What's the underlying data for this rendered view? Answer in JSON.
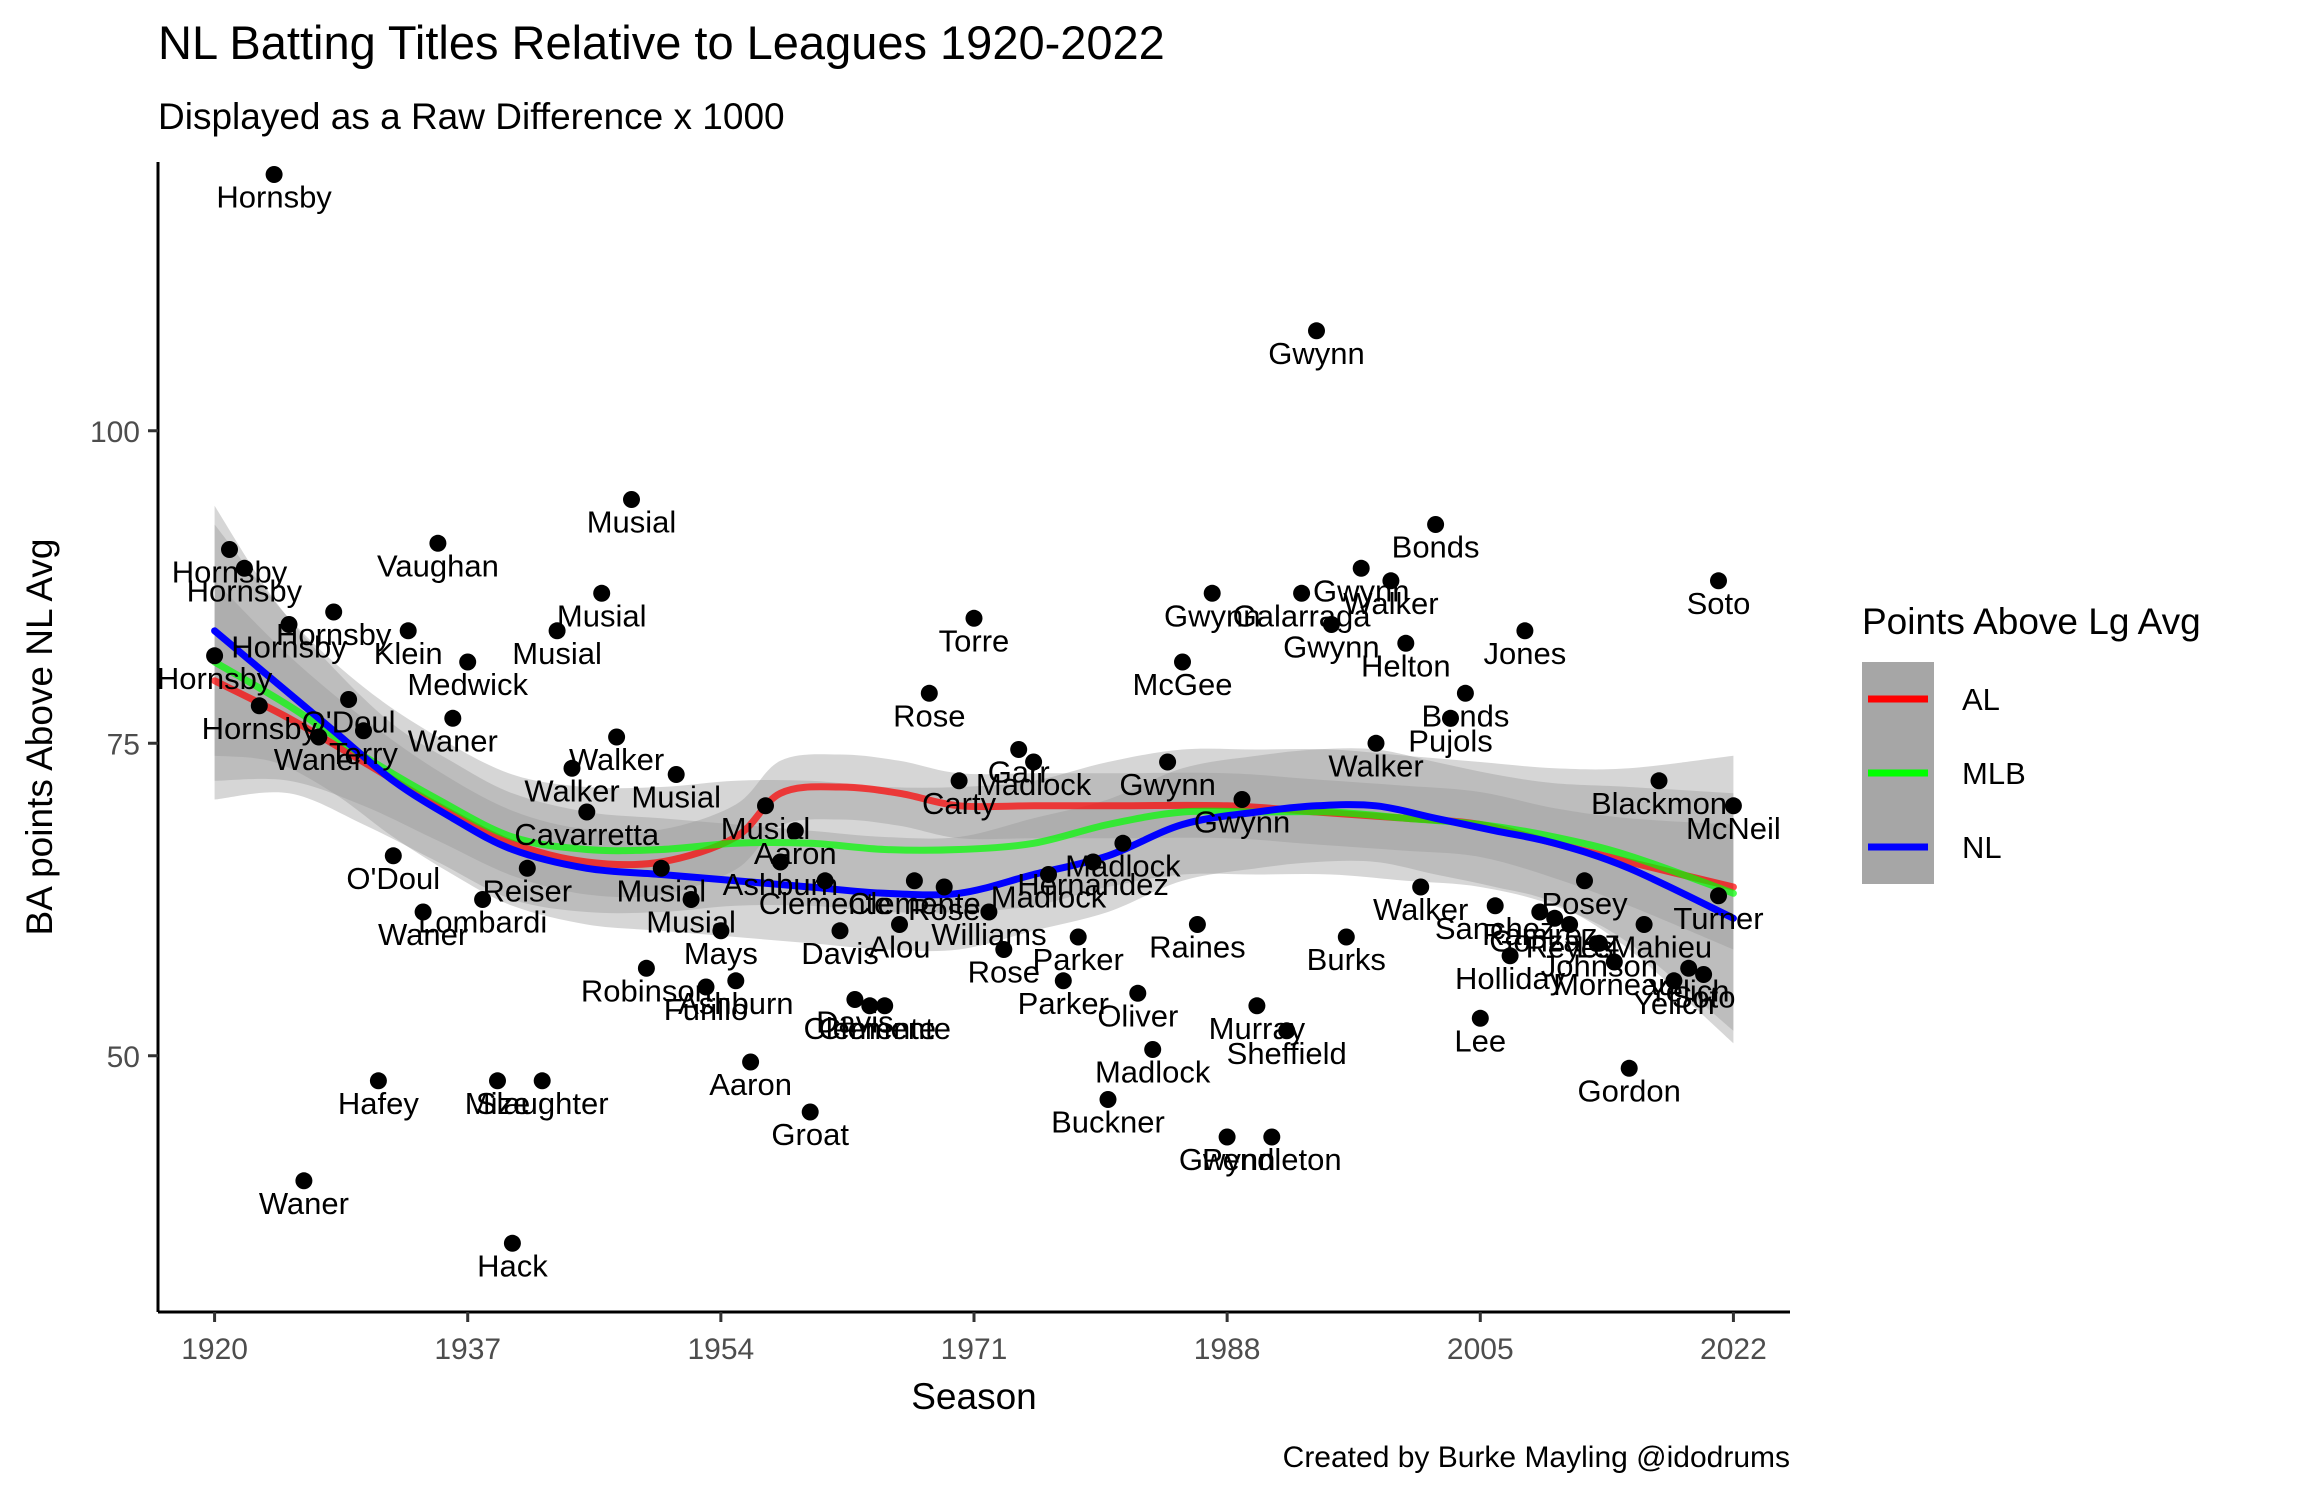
{
  "chart_data": {
    "type": "scatter",
    "title": "NL Batting Titles Relative to Leagues 1920-2022",
    "subtitle": "Displayed as a Raw Difference x 1000",
    "caption": "Created by Burke Mayling @idodrums",
    "xlabel": "Season",
    "ylabel": "BA points Above NL Avg",
    "xlim": [
      1916.2,
      2025.8
    ],
    "ylim": [
      29.5,
      121.5
    ],
    "xticks": [
      1920,
      1937,
      1954,
      1971,
      1988,
      2005,
      2022
    ],
    "yticks": [
      50,
      75,
      100
    ],
    "grid": false,
    "legend": {
      "title": "Points Above Lg Avg",
      "position": "right",
      "entries": [
        {
          "label": "AL",
          "color": "#ff0000"
        },
        {
          "label": "MLB",
          "color": "#00ff00"
        },
        {
          "label": "NL",
          "color": "#0000ff"
        }
      ]
    },
    "points": [
      {
        "x": 1920,
        "y": 82,
        "label": "Hornsby"
      },
      {
        "x": 1921,
        "y": 90.5,
        "label": "Hornsby"
      },
      {
        "x": 1922,
        "y": 89,
        "label": "Hornsby"
      },
      {
        "x": 1923,
        "y": 78,
        "label": "Hornsby"
      },
      {
        "x": 1924,
        "y": 120.5,
        "label": "Hornsby"
      },
      {
        "x": 1925,
        "y": 84.5,
        "label": "Hornsby"
      },
      {
        "x": 1926,
        "y": 40,
        "label": "Waner"
      },
      {
        "x": 1927,
        "y": 75.5,
        "label": "Waner"
      },
      {
        "x": 1928,
        "y": 85.5,
        "label": "Hornsby"
      },
      {
        "x": 1929,
        "y": 78.5,
        "label": "O'Doul"
      },
      {
        "x": 1930,
        "y": 76,
        "label": "Terry"
      },
      {
        "x": 1931,
        "y": 48,
        "label": "Hafey"
      },
      {
        "x": 1932,
        "y": 66,
        "label": "O'Doul"
      },
      {
        "x": 1933,
        "y": 84,
        "label": "Klein"
      },
      {
        "x": 1934,
        "y": 61.5,
        "label": "Waner"
      },
      {
        "x": 1935,
        "y": 91,
        "label": "Vaughan"
      },
      {
        "x": 1936,
        "y": 77,
        "label": "Waner"
      },
      {
        "x": 1937,
        "y": 81.5,
        "label": "Medwick"
      },
      {
        "x": 1938,
        "y": 62.5,
        "label": "Lombardi"
      },
      {
        "x": 1939,
        "y": 48,
        "label": "Mize"
      },
      {
        "x": 1940,
        "y": 35,
        "label": "Hack"
      },
      {
        "x": 1941,
        "y": 65,
        "label": "Reiser"
      },
      {
        "x": 1942,
        "y": 48,
        "label": "Slaughter"
      },
      {
        "x": 1943,
        "y": 84,
        "label": "Musial"
      },
      {
        "x": 1944,
        "y": 73,
        "label": "Walker"
      },
      {
        "x": 1945,
        "y": 69.5,
        "label": "Cavarretta"
      },
      {
        "x": 1946,
        "y": 87,
        "label": "Musial"
      },
      {
        "x": 1947,
        "y": 75.5,
        "label": "Walker"
      },
      {
        "x": 1948,
        "y": 94.5,
        "label": "Musial"
      },
      {
        "x": 1949,
        "y": 57,
        "label": "Robinson"
      },
      {
        "x": 1950,
        "y": 65,
        "label": "Musial"
      },
      {
        "x": 1951,
        "y": 72.5,
        "label": "Musial"
      },
      {
        "x": 1952,
        "y": 62.5,
        "label": "Musial"
      },
      {
        "x": 1953,
        "y": 55.5,
        "label": "Furillo"
      },
      {
        "x": 1954,
        "y": 60,
        "label": "Mays"
      },
      {
        "x": 1955,
        "y": 56,
        "label": "Ashburn"
      },
      {
        "x": 1956,
        "y": 49.5,
        "label": "Aaron"
      },
      {
        "x": 1957,
        "y": 70,
        "label": "Musial"
      },
      {
        "x": 1958,
        "y": 65.5,
        "label": "Ashburn"
      },
      {
        "x": 1959,
        "y": 68,
        "label": "Aaron"
      },
      {
        "x": 1960,
        "y": 45.5,
        "label": "Groat"
      },
      {
        "x": 1961,
        "y": 64,
        "label": "Clemente"
      },
      {
        "x": 1962,
        "y": 60,
        "label": "Davis"
      },
      {
        "x": 1963,
        "y": 54.5,
        "label": "Davis"
      },
      {
        "x": 1964,
        "y": 54,
        "label": "Clemente"
      },
      {
        "x": 1965,
        "y": 54,
        "label": "Clemente"
      },
      {
        "x": 1966,
        "y": 60.5,
        "label": "Alou"
      },
      {
        "x": 1967,
        "y": 64,
        "label": "Clemente"
      },
      {
        "x": 1968,
        "y": 79,
        "label": "Rose"
      },
      {
        "x": 1969,
        "y": 63.5,
        "label": "Rose"
      },
      {
        "x": 1970,
        "y": 72,
        "label": "Carty"
      },
      {
        "x": 1971,
        "y": 85,
        "label": "Torre"
      },
      {
        "x": 1972,
        "y": 61.5,
        "label": "Williams"
      },
      {
        "x": 1973,
        "y": 58.5,
        "label": "Rose"
      },
      {
        "x": 1974,
        "y": 74.5,
        "label": "Garr"
      },
      {
        "x": 1975,
        "y": 73.5,
        "label": "Madlock"
      },
      {
        "x": 1976,
        "y": 64.5,
        "label": "Madlock"
      },
      {
        "x": 1977,
        "y": 56,
        "label": "Parker"
      },
      {
        "x": 1978,
        "y": 59.5,
        "label": "Parker"
      },
      {
        "x": 1979,
        "y": 65.5,
        "label": "Hernandez"
      },
      {
        "x": 1980,
        "y": 46.5,
        "label": "Buckner"
      },
      {
        "x": 1981,
        "y": 67,
        "label": "Madlock"
      },
      {
        "x": 1982,
        "y": 55,
        "label": "Oliver"
      },
      {
        "x": 1983,
        "y": 50.5,
        "label": "Madlock"
      },
      {
        "x": 1984,
        "y": 73.5,
        "label": "Gwynn"
      },
      {
        "x": 1985,
        "y": 81.5,
        "label": "McGee"
      },
      {
        "x": 1986,
        "y": 60.5,
        "label": "Raines"
      },
      {
        "x": 1987,
        "y": 87,
        "label": "Gwynn"
      },
      {
        "x": 1988,
        "y": 43.5,
        "label": "Gwynn"
      },
      {
        "x": 1989,
        "y": 70.5,
        "label": "Gwynn"
      },
      {
        "x": 1990,
        "y": 54,
        "label": "Murray"
      },
      {
        "x": 1991,
        "y": 43.5,
        "label": "Pendleton"
      },
      {
        "x": 1992,
        "y": 52,
        "label": "Sheffield"
      },
      {
        "x": 1993,
        "y": 87,
        "label": "Galarraga"
      },
      {
        "x": 1994,
        "y": 108,
        "label": "Gwynn"
      },
      {
        "x": 1995,
        "y": 84.5,
        "label": "Gwynn"
      },
      {
        "x": 1996,
        "y": 59.5,
        "label": "Burks"
      },
      {
        "x": 1997,
        "y": 89,
        "label": "Gwynn"
      },
      {
        "x": 1998,
        "y": 75,
        "label": "Walker"
      },
      {
        "x": 1999,
        "y": 88,
        "label": "Walker"
      },
      {
        "x": 2000,
        "y": 83,
        "label": "Helton"
      },
      {
        "x": 2001,
        "y": 63.5,
        "label": "Walker"
      },
      {
        "x": 2002,
        "y": 92.5,
        "label": "Bonds"
      },
      {
        "x": 2003,
        "y": 77,
        "label": "Pujols"
      },
      {
        "x": 2004,
        "y": 79,
        "label": "Bonds"
      },
      {
        "x": 2005,
        "y": 53,
        "label": "Lee"
      },
      {
        "x": 2006,
        "y": 62,
        "label": "Sanchez"
      },
      {
        "x": 2007,
        "y": 58,
        "label": "Holliday"
      },
      {
        "x": 2008,
        "y": 84,
        "label": "Jones"
      },
      {
        "x": 2009,
        "y": 61.5,
        "label": "Ramirez"
      },
      {
        "x": 2010,
        "y": 61,
        "label": "Gonzalez"
      },
      {
        "x": 2011,
        "y": 60.5,
        "label": "Reyes"
      },
      {
        "x": 2012,
        "y": 64,
        "label": "Posey"
      },
      {
        "x": 2013,
        "y": 59,
        "label": "Johnson"
      },
      {
        "x": 2014,
        "y": 57.5,
        "label": "Morneau"
      },
      {
        "x": 2015,
        "y": 49,
        "label": "Gordon"
      },
      {
        "x": 2016,
        "y": 60.5,
        "label": "LeMahieu"
      },
      {
        "x": 2017,
        "y": 72,
        "label": "Blackmon"
      },
      {
        "x": 2018,
        "y": 56,
        "label": "Yelich"
      },
      {
        "x": 2019,
        "y": 57,
        "label": "Yelich"
      },
      {
        "x": 2020,
        "y": 56.5,
        "label": "Soto"
      },
      {
        "x": 2021,
        "y": 88,
        "label": "Soto"
      },
      {
        "x": 2021,
        "y": 62.8,
        "label": "Turner"
      },
      {
        "x": 2022,
        "y": 70,
        "label": "McNeil"
      }
    ],
    "series": [
      {
        "name": "AL",
        "color": "#ff0000",
        "x": [
          1920,
          1925,
          1930,
          1935,
          1940,
          1945,
          1950,
          1955,
          1958,
          1962,
          1966,
          1970,
          1975,
          1980,
          1988,
          1994,
          2000,
          2005,
          2010,
          2015,
          2022
        ],
        "y": [
          80,
          77,
          73.5,
          70,
          67,
          65.5,
          65.5,
          67.5,
          71,
          71.5,
          71,
          70,
          70,
          70,
          70,
          69.5,
          69,
          68.5,
          67,
          65.5,
          63.5
        ],
        "ci": [
          8,
          5,
          3.5,
          2.8,
          2.6,
          2.6,
          2.6,
          2.6,
          2.6,
          2.6,
          2.6,
          2.6,
          2.6,
          2.6,
          2.6,
          2.6,
          2.6,
          2.6,
          2.8,
          3.5,
          5
        ]
      },
      {
        "name": "MLB",
        "color": "#00ff00",
        "x": [
          1920,
          1925,
          1930,
          1935,
          1940,
          1945,
          1950,
          1955,
          1960,
          1965,
          1970,
          1975,
          1980,
          1985,
          1990,
          1995,
          2000,
          2005,
          2010,
          2015,
          2022
        ],
        "y": [
          81.5,
          78,
          74,
          70.5,
          67.5,
          66.5,
          66.5,
          67,
          67,
          66.5,
          66.5,
          67,
          68.5,
          69.5,
          69.5,
          69.5,
          69,
          68.5,
          67.5,
          66,
          63
        ],
        "ci": [
          11,
          7,
          5.5,
          5,
          5,
          5,
          5,
          5,
          5,
          5,
          5,
          5,
          5,
          5,
          5,
          5,
          5,
          5,
          5.5,
          7,
          11
        ]
      },
      {
        "name": "NL",
        "color": "#0000ff",
        "x": [
          1920,
          1924,
          1928,
          1932,
          1936,
          1940,
          1945,
          1950,
          1955,
          1960,
          1965,
          1970,
          1975,
          1980,
          1985,
          1990,
          1994,
          1998,
          2002,
          2006,
          2010,
          2015,
          2022
        ],
        "y": [
          84,
          80,
          76,
          72,
          69,
          66.5,
          65,
          64.5,
          64,
          63.5,
          63,
          63,
          64.5,
          66,
          68.5,
          69.5,
          70,
          70,
          69,
          68,
          67,
          65,
          61
        ],
        "ci": [
          10,
          6.5,
          5,
          4.5,
          4.5,
          4.5,
          4.5,
          4.5,
          4.5,
          4.5,
          4.5,
          4.5,
          4.5,
          4.5,
          4.5,
          4.5,
          4.5,
          4.5,
          4.5,
          4.5,
          4.8,
          6.5,
          10
        ]
      }
    ]
  }
}
